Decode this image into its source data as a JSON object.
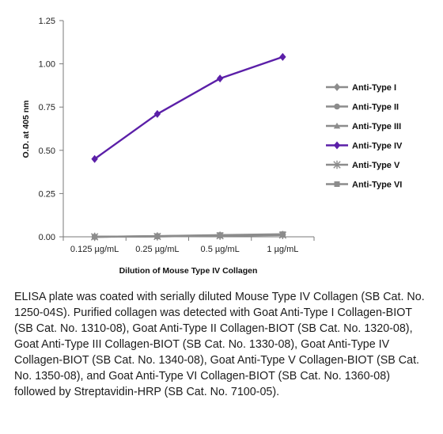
{
  "chart_data": {
    "type": "line",
    "categories": [
      "0.125 µg/mL",
      "0.25 µg/mL",
      "0.5 µg/mL",
      "1 µg/mL"
    ],
    "xlabel": "Dilution of Mouse Type IV Collagen",
    "ylabel": "O.D. at 405 nm",
    "ylim": [
      0,
      1.25
    ],
    "yticks": [
      "0.00",
      "0.25",
      "0.50",
      "0.75",
      "1.00",
      "1.25"
    ],
    "ytick_values": [
      0,
      0.25,
      0.5,
      0.75,
      1.0,
      1.25
    ],
    "grid": false,
    "legend_position": "right",
    "series": [
      {
        "name": "Anti-Type I",
        "values": [
          0.0,
          0.003,
          0.008,
          0.012
        ],
        "color": "#8c8c8c",
        "marker": "diamond"
      },
      {
        "name": "Anti-Type II",
        "values": [
          0.0,
          0.003,
          0.009,
          0.013
        ],
        "color": "#8c8c8c",
        "marker": "circle"
      },
      {
        "name": "Anti-Type III",
        "values": [
          0.0,
          0.002,
          0.007,
          0.011
        ],
        "color": "#8c8c8c",
        "marker": "triangle"
      },
      {
        "name": "Anti-Type IV",
        "values": [
          0.45,
          0.71,
          0.915,
          1.04
        ],
        "color": "#5b1fa8",
        "marker": "diamond"
      },
      {
        "name": "Anti-Type V",
        "values": [
          0.0,
          0.002,
          0.006,
          0.01
        ],
        "color": "#8c8c8c",
        "marker": "star"
      },
      {
        "name": "Anti-Type VI",
        "values": [
          0.0,
          0.004,
          0.01,
          0.015
        ],
        "color": "#8c8c8c",
        "marker": "square"
      }
    ]
  },
  "caption": "ELISA plate was coated with serially diluted Mouse Type IV Collagen (SB Cat. No. 1250-04S).  Purified collagen was detected with Goat Anti-Type I Collagen-BIOT (SB Cat. No. 1310-08), Goat Anti-Type II Collagen-BIOT (SB Cat. No. 1320-08), Goat Anti-Type III Collagen-BIOT (SB Cat. No. 1330-08), Goat Anti-Type IV Collagen-BIOT (SB Cat. No. 1340-08), Goat Anti-Type V Collagen-BIOT (SB Cat. No. 1350-08), and Goat Anti-Type VI Collagen-BIOT (SB Cat. No. 1360-08) followed by Streptavidin-HRP (SB Cat. No. 7100-05)."
}
